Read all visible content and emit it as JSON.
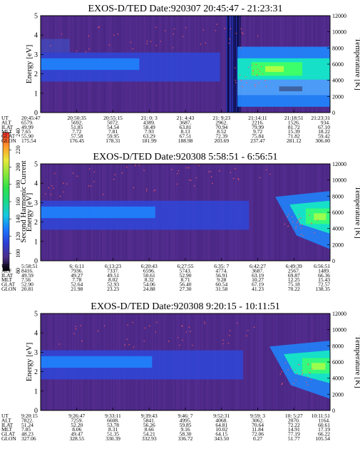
{
  "colors": {
    "background": "#4f2a8a",
    "low_band": "#2f46d8",
    "mid_band": "#1f86ff",
    "high_band": "#17e0c8",
    "hot": "#3dff6a",
    "peak": "#c8ff3a",
    "frame": "#000000"
  },
  "colorbar": {
    "label": "Second Harmonic Current",
    "ticks": [
      "80",
      "100",
      "120",
      "140",
      "160",
      "180",
      "200",
      "220",
      "240"
    ],
    "stops": [
      "#000000",
      "#4b2d8c",
      "#2b3ed6",
      "#1a78ff",
      "#16c8e0",
      "#18d98a",
      "#2fe24a",
      "#8ae83a",
      "#e8e83a",
      "#ff9a2a",
      "#ff2a2a"
    ]
  },
  "chart_data": [
    {
      "type": "heatmap",
      "title": "EXOS-D/TED   Date:920307  20:45:47 - 21:23:31",
      "ylabel": "Energy [eV]",
      "y2label": "Temperature [K]",
      "ylim": [
        0,
        5
      ],
      "y2lim": [
        0,
        12000
      ],
      "yticks": [
        "0",
        "1",
        "2",
        "3",
        "4",
        "5"
      ],
      "y2ticks": [
        "0",
        "2000",
        "4000",
        "6000",
        "8000",
        "10000",
        "12000"
      ],
      "row_labels": [
        "UT",
        "ALT",
        "ILAT",
        "MLT",
        "GLAT",
        "GLON"
      ],
      "columns": [
        [
          "20:45:47",
          "6579.",
          "49.99",
          "7.65",
          "55.90",
          "175.54"
        ],
        [
          "20:50:35",
          "5692.",
          "51.85",
          "7.72",
          "57.58",
          "176.45"
        ],
        [
          "20:55:15",
          "5072.",
          "54.54",
          "7.81",
          "59.95",
          "178.31"
        ],
        [
          "21: 0: 3",
          "4389.",
          "58.49",
          "7.93",
          "63.29",
          "181.99"
        ],
        [
          "21: 4:43",
          "3687.",
          "63.81",
          "8.13",
          "67.51",
          "188.98"
        ],
        [
          "21: 9:23",
          "2962.",
          "70.94",
          "8.52",
          "72.39",
          "203.69"
        ],
        [
          "21:14:11",
          "2216.",
          "79.99",
          "9.72",
          "75.84",
          "237.47"
        ],
        [
          "21:18:51",
          "1526.",
          "81.72",
          "15.39",
          "71.82",
          "281.12"
        ],
        [
          "21:23:31",
          "934.",
          "67.10",
          "18.22",
          "59.42",
          "306.00"
        ]
      ]
    },
    {
      "type": "heatmap",
      "title": "EXOS-D/TED   Date:920308  5:58:51 - 6:56:51",
      "ylabel": "Energy [eV]",
      "y2label": "Temperature [K]",
      "ylim": [
        0,
        5
      ],
      "y2lim": [
        0,
        12000
      ],
      "yticks": [
        "0",
        "1",
        "2",
        "3",
        "4",
        "5"
      ],
      "y2ticks": [
        "0",
        "2000",
        "4000",
        "6000",
        "8000",
        "10000",
        "12000"
      ],
      "row_labels": [
        "UT",
        "ALT",
        "ILAT",
        "MLT",
        "GLAT",
        "GLON"
      ],
      "columns": [
        [
          "5:58:51",
          "8416.",
          "49.59",
          "7.56",
          "52.90",
          "20.81"
        ],
        [
          "6: 6:11",
          "7936.",
          "49.27",
          "7.78",
          "52.64",
          "21.98"
        ],
        [
          "6:13:23",
          "7337.",
          "49.51",
          "8.02",
          "52.93",
          "23.23"
        ],
        [
          "6:20:43",
          "6596.",
          "50.61",
          "8.32",
          "54.06",
          "24.88"
        ],
        [
          "6:27:55",
          "5743.",
          "52.90",
          "8.71",
          "56.40",
          "27.30"
        ],
        [
          "6:35: 7",
          "4774.",
          "56.91",
          "9.28",
          "60.54",
          "31.58"
        ],
        [
          "6:42:27",
          "3687.",
          "63.19",
          "10.27",
          "67.19",
          "41.23"
        ],
        [
          "6:49:39",
          "2567.",
          "69.87",
          "12.25",
          "75.18",
          "70.22"
        ],
        [
          "6:56:51",
          "1489.",
          "66.36",
          "15.43",
          "72.57",
          "138.35"
        ]
      ]
    },
    {
      "type": "heatmap",
      "title": "EXOS-D/TED   Date:920308  9:20:15 - 10:11:51",
      "ylabel": "Energy [eV]",
      "y2label": "Temperature [K]",
      "ylim": [
        0,
        5
      ],
      "y2lim": [
        0,
        12000
      ],
      "yticks": [
        "0",
        "1",
        "2",
        "3",
        "4",
        "5"
      ],
      "y2ticks": [
        "0",
        "2000",
        "4000",
        "6000",
        "8000",
        "10000",
        "12000"
      ],
      "row_labels": [
        "UT",
        "ALT",
        "ILAT",
        "MLT",
        "GLAT",
        "GLON"
      ],
      "columns": [
        [
          "9:20:15",
          "7822.",
          "51.24",
          "7.85",
          "48.23",
          "327.06"
        ],
        [
          "9:26:47",
          "7259.",
          "52.20",
          "8.06",
          "49.47",
          "328.55"
        ],
        [
          "9:33:11",
          "6608.",
          "53.78",
          "8.31",
          "51.35",
          "330.39"
        ],
        [
          "9:39:43",
          "5841.",
          "56.26",
          "8.66",
          "54.21",
          "332.93"
        ],
        [
          "9:46: 7",
          "4995.",
          "59.85",
          "9.16",
          "58.30",
          "336.72"
        ],
        [
          "9:52:31",
          "4068.",
          "64.81",
          "10.02",
          "64.15",
          "343.50"
        ],
        [
          "9:59: 3",
          "3062.",
          "70.64",
          "11.84",
          "72.06",
          "0.27"
        ],
        [
          "10: 5:27",
          "2070.",
          "72.22",
          "14.91",
          "77.19",
          "51.77"
        ],
        [
          "10:11:51",
          "1164.",
          "60.61",
          "17.19",
          "66.22",
          "105.54"
        ]
      ]
    }
  ]
}
